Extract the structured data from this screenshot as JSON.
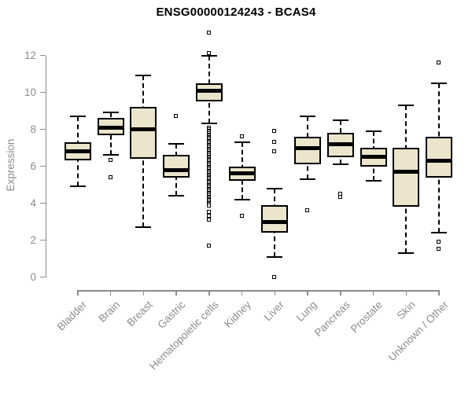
{
  "title": "ENSG00000124243 - BCAS4",
  "chart_data": {
    "type": "boxplot",
    "title": "ENSG00000124243 - BCAS4",
    "ylabel": "Expression",
    "xlabel": "",
    "ylim": [
      0,
      12
    ],
    "yticks": [
      0,
      2,
      4,
      6,
      8,
      10,
      12
    ],
    "grid": false,
    "legend": "none",
    "box_fill": "#EAE5CB",
    "box_border": "#000000",
    "median_color": "#000000",
    "axis_color": "#8c8c8c",
    "text_color": "#8c8c8c",
    "title_color": "#000000",
    "categories": [
      "Bladder",
      "Brain",
      "Breast",
      "Gastric",
      "Hematopoietic cells",
      "Kidney",
      "Liver",
      "Lung",
      "Pancreas",
      "Prostate",
      "Skin",
      "Unknown / Other"
    ],
    "series": [
      {
        "category": "Bladder",
        "whisker_low": 4.9,
        "q1": 6.3,
        "median": 6.8,
        "q3": 7.3,
        "whisker_high": 8.7,
        "outliers": []
      },
      {
        "category": "Brain",
        "whisker_low": 6.6,
        "q1": 7.7,
        "median": 8.1,
        "q3": 8.6,
        "whisker_high": 8.9,
        "outliers": [
          6.3,
          5.4
        ]
      },
      {
        "category": "Breast",
        "whisker_low": 2.7,
        "q1": 6.4,
        "median": 8.0,
        "q3": 9.2,
        "whisker_high": 10.9,
        "outliers": []
      },
      {
        "category": "Gastric",
        "whisker_low": 4.4,
        "q1": 5.4,
        "median": 5.8,
        "q3": 6.6,
        "whisker_high": 7.2,
        "outliers": [
          8.7
        ]
      },
      {
        "category": "Hematopoietic cells",
        "whisker_low": 8.3,
        "q1": 9.5,
        "median": 10.1,
        "q3": 10.5,
        "whisker_high": 12.0,
        "outliers": [
          13.2,
          12.1,
          3.5,
          3.3,
          3.1,
          1.7
        ],
        "outlier_run": {
          "max": 8.05,
          "min": 3.8,
          "step": 0.07
        }
      },
      {
        "category": "Kidney",
        "whisker_low": 4.2,
        "q1": 5.2,
        "median": 5.6,
        "q3": 6.0,
        "whisker_high": 7.3,
        "outliers": [
          7.6,
          3.3
        ]
      },
      {
        "category": "Liver",
        "whisker_low": 1.1,
        "q1": 2.4,
        "median": 3.0,
        "q3": 3.9,
        "whisker_high": 4.8,
        "outliers": [
          7.9,
          7.3,
          6.8,
          0.0
        ]
      },
      {
        "category": "Lung",
        "whisker_low": 5.3,
        "q1": 6.1,
        "median": 7.0,
        "q3": 7.6,
        "whisker_high": 8.7,
        "outliers": [
          3.6
        ]
      },
      {
        "category": "Pancreas",
        "whisker_low": 6.1,
        "q1": 6.5,
        "median": 7.2,
        "q3": 7.8,
        "whisker_high": 8.5,
        "outliers": [
          4.5,
          4.3
        ]
      },
      {
        "category": "Prostate",
        "whisker_low": 5.2,
        "q1": 6.0,
        "median": 6.5,
        "q3": 7.0,
        "whisker_high": 7.9,
        "outliers": []
      },
      {
        "category": "Skin",
        "whisker_low": 1.3,
        "q1": 3.8,
        "median": 5.7,
        "q3": 7.0,
        "whisker_high": 9.3,
        "outliers": []
      },
      {
        "category": "Unknown / Other",
        "whisker_low": 2.4,
        "q1": 5.4,
        "median": 6.3,
        "q3": 7.6,
        "whisker_high": 10.5,
        "outliers": [
          11.6,
          1.9,
          1.5
        ]
      }
    ]
  }
}
